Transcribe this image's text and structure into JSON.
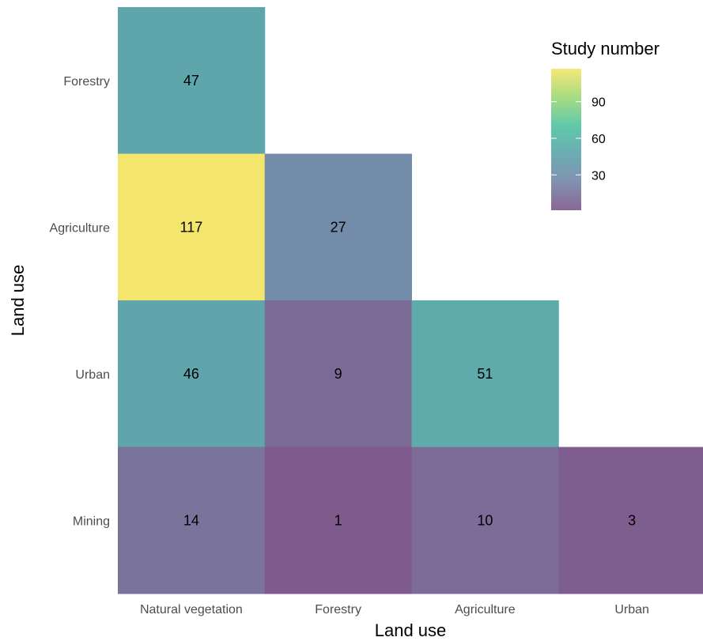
{
  "chart_data": {
    "type": "heatmap",
    "xlabel": "Land use",
    "ylabel": "Land use",
    "x_categories": [
      "Natural vegetation",
      "Forestry",
      "Agriculture",
      "Urban"
    ],
    "y_categories": [
      "Forestry",
      "Agriculture",
      "Urban",
      "Mining"
    ],
    "cells": [
      {
        "x": "Natural vegetation",
        "y": "Forestry",
        "value": 47
      },
      {
        "x": "Natural vegetation",
        "y": "Agriculture",
        "value": 117
      },
      {
        "x": "Forestry",
        "y": "Agriculture",
        "value": 27
      },
      {
        "x": "Natural vegetation",
        "y": "Urban",
        "value": 46
      },
      {
        "x": "Forestry",
        "y": "Urban",
        "value": 9
      },
      {
        "x": "Agriculture",
        "y": "Urban",
        "value": 51
      },
      {
        "x": "Natural vegetation",
        "y": "Mining",
        "value": 14
      },
      {
        "x": "Forestry",
        "y": "Mining",
        "value": 1
      },
      {
        "x": "Agriculture",
        "y": "Mining",
        "value": 10
      },
      {
        "x": "Urban",
        "y": "Mining",
        "value": 3
      }
    ],
    "legend": {
      "title": "Study number",
      "ticks": [
        30,
        60,
        90
      ],
      "range": [
        1,
        117
      ],
      "colors": [
        "#7f5a8c",
        "#7688a9",
        "#5fa6ac",
        "#52c4a2",
        "#a0da77",
        "#f4e56d"
      ],
      "placement": "top-right"
    },
    "grid": false
  }
}
